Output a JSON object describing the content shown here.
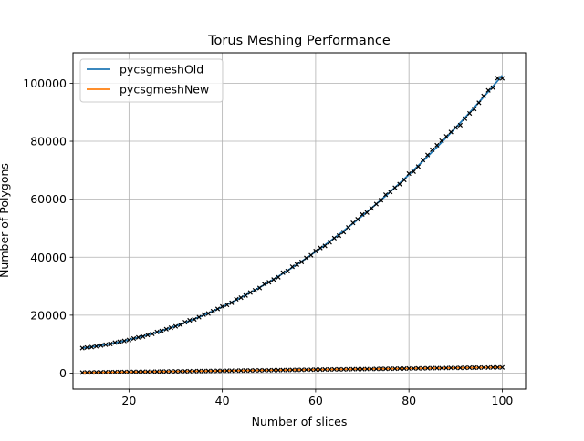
{
  "chart_data": {
    "type": "line",
    "title": "Torus Meshing Performance",
    "xlabel": "Number of slices",
    "ylabel": "Number of Polygons",
    "xlim": [
      8,
      105
    ],
    "ylim": [
      -5500,
      110500
    ],
    "x_ticks": [
      20,
      40,
      60,
      80,
      100
    ],
    "x_tick_labels": [
      "20",
      "40",
      "60",
      "80",
      "100"
    ],
    "y_ticks": [
      0,
      20000,
      40000,
      60000,
      80000,
      100000
    ],
    "y_tick_labels": [
      "0",
      "20000",
      "40000",
      "60000",
      "80000",
      "100000"
    ],
    "grid": true,
    "legend_position": "upper-left",
    "series": [
      {
        "name": "pycsgmeshOld",
        "color": "#1f77b4",
        "style": "line",
        "model": {
          "kind": "quadratic",
          "a": 9.5,
          "b": 0,
          "c": 7700
        },
        "x": [
          10,
          20,
          30,
          40,
          50,
          60,
          70,
          80,
          90,
          100
        ],
        "values": [
          8650,
          11500,
          16250,
          22900,
          31450,
          41900,
          54250,
          68500,
          84650,
          102700
        ]
      },
      {
        "name": "pycsgmeshNew",
        "color": "#ff7f0e",
        "style": "line",
        "model": {
          "kind": "linear",
          "a": 0,
          "b": 20,
          "c": 0
        },
        "x": [
          10,
          20,
          30,
          40,
          50,
          60,
          70,
          80,
          90,
          100
        ],
        "values": [
          200,
          400,
          600,
          800,
          1000,
          1200,
          1400,
          1600,
          1800,
          2000
        ]
      },
      {
        "name": "",
        "color": "#000000",
        "style": "markers",
        "marker": "x",
        "x_start": 10,
        "x_end": 100,
        "attached_to": [
          "pycsgmeshOld",
          "pycsgmeshNew"
        ]
      }
    ]
  }
}
